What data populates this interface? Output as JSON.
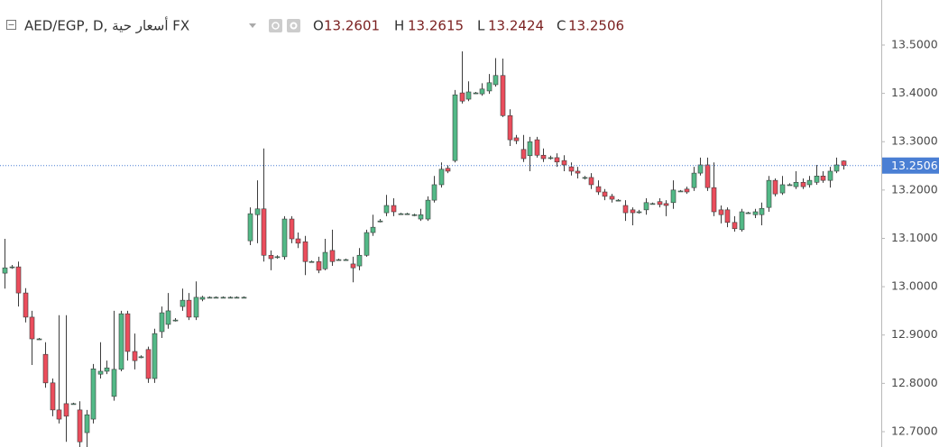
{
  "chart_data": {
    "type": "candlestick",
    "title": "AED/EGP, D, أسعار حية FX",
    "header": {
      "labels": [
        "O",
        "H",
        "L",
        "C"
      ],
      "values": [
        13.2601,
        13.2615,
        13.2424,
        13.2506
      ]
    },
    "up_color": "#53b987",
    "down_color": "#eb4d5c",
    "wick_color": "#3c3c3c",
    "price_line_color": "#4a7fd4",
    "ylim": [
      12.6683,
      13.5932
    ],
    "yticks": [
      {
        "value": 12.7,
        "label": "12.7000"
      },
      {
        "value": 12.8,
        "label": "12.8000"
      },
      {
        "value": 12.9,
        "label": "12.9000"
      },
      {
        "value": 13.0,
        "label": "13.0000"
      },
      {
        "value": 13.1,
        "label": "13.1000"
      },
      {
        "value": 13.2,
        "label": "13.2000"
      },
      {
        "value": 13.3,
        "label": "13.3000"
      },
      {
        "value": 13.4,
        "label": "13.4000"
      },
      {
        "value": 13.5,
        "label": "13.5000"
      }
    ],
    "ohlc": [
      [
        13.028,
        13.099,
        12.996,
        13.039
      ],
      [
        13.041,
        13.045,
        13.037,
        13.041
      ],
      [
        13.041,
        13.052,
        12.959,
        12.987
      ],
      [
        12.987,
        12.997,
        12.926,
        12.937
      ],
      [
        12.937,
        12.95,
        12.838,
        12.892
      ],
      [
        12.892,
        12.894,
        12.89,
        12.892
      ],
      [
        12.86,
        12.885,
        12.791,
        12.801
      ],
      [
        12.801,
        12.81,
        12.732,
        12.745
      ],
      [
        12.745,
        12.941,
        12.717,
        12.726
      ],
      [
        12.758,
        12.941,
        12.679,
        12.732
      ],
      [
        12.758,
        12.76,
        12.756,
        12.758
      ],
      [
        12.745,
        12.763,
        12.668,
        12.679
      ],
      [
        12.698,
        12.745,
        12.668,
        12.735
      ],
      [
        12.726,
        12.84,
        12.717,
        12.83
      ],
      [
        12.819,
        12.885,
        12.81,
        12.825
      ],
      [
        12.825,
        12.847,
        12.819,
        12.832
      ],
      [
        12.773,
        12.95,
        12.764,
        12.829
      ],
      [
        12.829,
        12.95,
        12.825,
        12.944
      ],
      [
        12.944,
        12.95,
        12.847,
        12.866
      ],
      [
        12.866,
        12.903,
        12.829,
        12.847
      ],
      [
        12.855,
        12.858,
        12.852,
        12.855
      ],
      [
        12.87,
        12.876,
        12.801,
        12.81
      ],
      [
        12.81,
        12.913,
        12.801,
        12.903
      ],
      [
        12.907,
        12.959,
        12.894,
        12.946
      ],
      [
        12.922,
        12.987,
        12.913,
        12.95
      ],
      [
        12.931,
        12.935,
        12.928,
        12.931
      ],
      [
        12.959,
        12.996,
        12.95,
        12.972
      ],
      [
        12.972,
        12.987,
        12.931,
        12.937
      ],
      [
        12.937,
        13.011,
        12.931,
        12.978
      ],
      [
        12.974,
        12.981,
        12.97,
        12.978
      ],
      [
        12.978,
        12.98,
        12.976,
        12.978
      ],
      [
        12.978,
        12.98,
        12.976,
        12.978
      ],
      [
        12.978,
        12.98,
        12.976,
        12.978
      ],
      [
        12.978,
        12.98,
        12.976,
        12.978
      ],
      [
        12.978,
        12.98,
        12.976,
        12.978
      ],
      [
        12.978,
        12.98,
        12.976,
        12.978
      ],
      [
        13.095,
        13.164,
        13.086,
        13.151
      ],
      [
        13.149,
        13.22,
        13.09,
        13.161
      ],
      [
        13.161,
        13.286,
        13.052,
        13.065
      ],
      [
        13.065,
        13.075,
        13.034,
        13.058
      ],
      [
        13.062,
        13.065,
        13.058,
        13.062
      ],
      [
        13.062,
        13.146,
        13.056,
        13.14
      ],
      [
        13.14,
        13.146,
        13.09,
        13.099
      ],
      [
        13.099,
        13.112,
        13.08,
        13.09
      ],
      [
        13.093,
        13.105,
        13.024,
        13.052
      ],
      [
        13.052,
        13.054,
        13.05,
        13.052
      ],
      [
        13.052,
        13.062,
        13.028,
        13.034
      ],
      [
        13.037,
        13.099,
        13.034,
        13.071
      ],
      [
        13.075,
        13.118,
        13.043,
        13.052
      ],
      [
        13.056,
        13.058,
        13.054,
        13.056
      ],
      [
        13.056,
        13.058,
        13.054,
        13.056
      ],
      [
        13.047,
        13.062,
        13.009,
        13.039
      ],
      [
        13.043,
        13.08,
        13.034,
        13.065
      ],
      [
        13.065,
        13.118,
        13.062,
        13.112
      ],
      [
        13.112,
        13.149,
        13.105,
        13.123
      ],
      [
        13.136,
        13.14,
        13.133,
        13.136
      ],
      [
        13.153,
        13.19,
        13.146,
        13.168
      ],
      [
        13.168,
        13.183,
        13.146,
        13.155
      ],
      [
        13.151,
        13.153,
        13.149,
        13.151
      ],
      [
        13.151,
        13.153,
        13.149,
        13.151
      ],
      [
        13.149,
        13.151,
        13.146,
        13.149
      ],
      [
        13.14,
        13.161,
        13.136,
        13.149
      ],
      [
        13.14,
        13.187,
        13.136,
        13.179
      ],
      [
        13.179,
        13.229,
        13.174,
        13.211
      ],
      [
        13.211,
        13.257,
        13.205,
        13.243
      ],
      [
        13.245,
        13.251,
        13.235,
        13.239
      ],
      [
        13.261,
        13.407,
        13.257,
        13.397
      ],
      [
        13.401,
        13.487,
        13.379,
        13.384
      ],
      [
        13.388,
        13.425,
        13.384,
        13.403
      ],
      [
        13.401,
        13.403,
        13.399,
        13.401
      ],
      [
        13.399,
        13.421,
        13.395,
        13.409
      ],
      [
        13.405,
        13.44,
        13.399,
        13.422
      ],
      [
        13.418,
        13.473,
        13.414,
        13.437
      ],
      [
        13.437,
        13.472,
        13.351,
        13.354
      ],
      [
        13.354,
        13.367,
        13.291,
        13.304
      ],
      [
        13.308,
        13.314,
        13.295,
        13.302
      ],
      [
        13.284,
        13.314,
        13.258,
        13.265
      ],
      [
        13.271,
        13.31,
        13.239,
        13.3
      ],
      [
        13.304,
        13.31,
        13.267,
        13.272
      ],
      [
        13.272,
        13.286,
        13.258,
        13.265
      ],
      [
        13.267,
        13.271,
        13.263,
        13.267
      ],
      [
        13.267,
        13.276,
        13.248,
        13.258
      ],
      [
        13.261,
        13.272,
        13.239,
        13.252
      ],
      [
        13.248,
        13.257,
        13.23,
        13.239
      ],
      [
        13.239,
        13.248,
        13.224,
        13.235
      ],
      [
        13.226,
        13.229,
        13.222,
        13.226
      ],
      [
        13.226,
        13.235,
        13.202,
        13.211
      ],
      [
        13.207,
        13.22,
        13.19,
        13.196
      ],
      [
        13.196,
        13.202,
        13.179,
        13.187
      ],
      [
        13.187,
        13.192,
        13.174,
        13.181
      ],
      [
        13.179,
        13.181,
        13.177,
        13.179
      ],
      [
        13.168,
        13.179,
        13.136,
        13.153
      ],
      [
        13.159,
        13.164,
        13.127,
        13.153
      ],
      [
        13.155,
        13.159,
        13.151,
        13.155
      ],
      [
        13.159,
        13.183,
        13.149,
        13.174
      ],
      [
        13.172,
        13.174,
        13.17,
        13.172
      ],
      [
        13.176,
        13.183,
        13.164,
        13.17
      ],
      [
        13.172,
        13.179,
        13.146,
        13.168
      ],
      [
        13.174,
        13.22,
        13.161,
        13.2
      ],
      [
        13.198,
        13.2,
        13.196,
        13.198
      ],
      [
        13.202,
        13.207,
        13.192,
        13.196
      ],
      [
        13.205,
        13.248,
        13.198,
        13.235
      ],
      [
        13.235,
        13.267,
        13.23,
        13.252
      ],
      [
        13.252,
        13.267,
        13.198,
        13.205
      ],
      [
        13.205,
        13.257,
        13.146,
        13.155
      ],
      [
        13.159,
        13.168,
        13.131,
        13.149
      ],
      [
        13.159,
        13.164,
        13.123,
        13.133
      ],
      [
        13.133,
        13.146,
        13.114,
        13.12
      ],
      [
        13.118,
        13.161,
        13.114,
        13.155
      ],
      [
        13.153,
        13.155,
        13.151,
        13.153
      ],
      [
        13.149,
        13.161,
        13.142,
        13.155
      ],
      [
        13.149,
        13.174,
        13.127,
        13.162
      ],
      [
        13.164,
        13.229,
        13.155,
        13.22
      ],
      [
        13.22,
        13.224,
        13.187,
        13.192
      ],
      [
        13.194,
        13.229,
        13.19,
        13.211
      ],
      [
        13.211,
        13.214,
        13.209,
        13.211
      ],
      [
        13.207,
        13.239,
        13.202,
        13.216
      ],
      [
        13.216,
        13.224,
        13.202,
        13.207
      ],
      [
        13.211,
        13.229,
        13.205,
        13.22
      ],
      [
        13.216,
        13.252,
        13.211,
        13.229
      ],
      [
        13.229,
        13.239,
        13.215,
        13.22
      ],
      [
        13.22,
        13.248,
        13.205,
        13.239
      ],
      [
        13.239,
        13.267,
        13.235,
        13.252
      ],
      [
        13.2601,
        13.2615,
        13.2424,
        13.2506
      ]
    ]
  }
}
